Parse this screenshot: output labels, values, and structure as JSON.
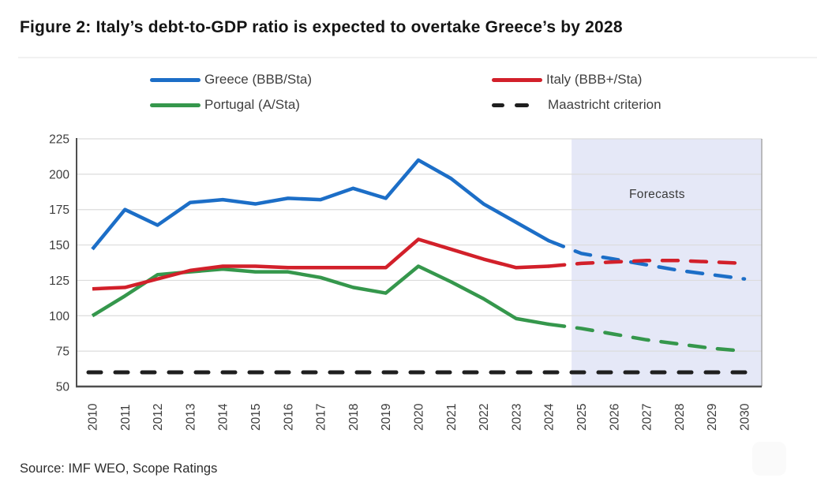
{
  "figure": {
    "title": "Figure 2: Italy’s debt-to-GDP ratio is expected to overtake Greece’s by 2028",
    "source": "Source: IMF WEO, Scope Ratings"
  },
  "chart_data": {
    "type": "line",
    "title": "Figure 2: Italy’s debt-to-GDP ratio is expected to overtake Greece’s by 2028",
    "xlabel": "",
    "ylabel": "",
    "x": [
      2010,
      2011,
      2012,
      2013,
      2014,
      2015,
      2016,
      2017,
      2018,
      2019,
      2020,
      2021,
      2022,
      2023,
      2024,
      2025,
      2026,
      2027,
      2028,
      2029,
      2030
    ],
    "x_tick_labels": [
      "2010",
      "2011",
      "2012",
      "2013",
      "2014",
      "2015",
      "2016",
      "2017",
      "2018",
      "2019",
      "2020",
      "2021",
      "2022",
      "2023",
      "2024",
      "2025",
      "2026",
      "2027",
      "2028",
      "2029",
      "2030"
    ],
    "ylim": [
      50,
      225
    ],
    "ytick_step": 25,
    "y_tick_labels": [
      "50",
      "75",
      "100",
      "125",
      "150",
      "175",
      "200",
      "225"
    ],
    "grid": true,
    "legend_position": "top",
    "forecast_band": {
      "label": "Forecasts",
      "from_x": 2024.7,
      "to_x": 2030.55,
      "color": "#e5e8f7",
      "label_color": "#3a3a3a"
    },
    "series": [
      {
        "name": "Greece (BBB/Sta)",
        "color": "#1c6ec7",
        "solid_through": 2024,
        "values": [
          147,
          175,
          164,
          180,
          182,
          179,
          183,
          182,
          190,
          183,
          210,
          197,
          179,
          166,
          153,
          144,
          140,
          136,
          132,
          129,
          126
        ]
      },
      {
        "name": "Italy (BBB+/Sta)",
        "color": "#d2202a",
        "solid_through": 2024,
        "values": [
          119,
          120,
          126,
          132,
          135,
          135,
          134,
          134,
          134,
          134,
          154,
          147,
          140,
          134,
          135,
          137,
          138,
          139,
          139,
          138,
          137
        ]
      },
      {
        "name": "Portugal (A/Sta)",
        "color": "#35974c",
        "solid_through": 2024,
        "values": [
          100,
          114,
          129,
          131,
          133,
          131,
          131,
          127,
          120,
          116,
          135,
          124,
          112,
          98,
          94,
          91,
          87,
          83,
          80,
          77,
          75
        ]
      },
      {
        "name": "Maastricht criterion",
        "color": "#1f1f1f",
        "style": "dashed",
        "constant_value": 60,
        "values": [
          60,
          60,
          60,
          60,
          60,
          60,
          60,
          60,
          60,
          60,
          60,
          60,
          60,
          60,
          60,
          60,
          60,
          60,
          60,
          60,
          60
        ]
      }
    ],
    "colors": {
      "gridline": "#dcdcdc",
      "axis": "#4f4f4f",
      "right_border": "#9c9c9c",
      "tick_label": "#3d3d3d"
    }
  }
}
